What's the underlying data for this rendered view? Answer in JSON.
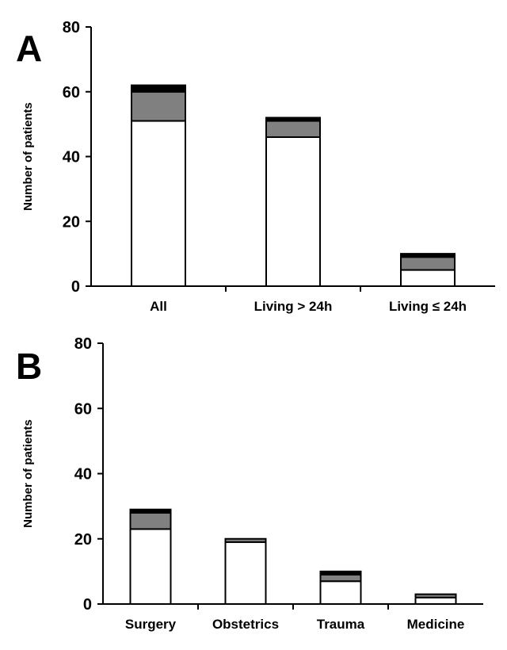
{
  "chart_data": [
    {
      "type": "bar",
      "stacked": true,
      "panel_label": "A",
      "ylabel": "Number of patients",
      "xlabel": "",
      "ylim": [
        0,
        80
      ],
      "yticks": [
        "0",
        "20",
        "40",
        "60",
        "80"
      ],
      "categories": [
        "All",
        "Living > 24h",
        "Living ≤ 24h"
      ],
      "series": [
        {
          "name": "white",
          "color": "#ffffff",
          "values": [
            51,
            46,
            5
          ]
        },
        {
          "name": "gray",
          "color": "#808080",
          "values": [
            9,
            5,
            4
          ]
        },
        {
          "name": "black",
          "color": "#000000",
          "values": [
            2,
            1,
            1
          ]
        }
      ]
    },
    {
      "type": "bar",
      "stacked": true,
      "panel_label": "B",
      "ylabel": "Number of patients",
      "xlabel": "",
      "ylim": [
        0,
        80
      ],
      "yticks": [
        "0",
        "20",
        "40",
        "60",
        "80"
      ],
      "categories": [
        "Surgery",
        "Obstetrics",
        "Trauma",
        "Medicine"
      ],
      "series": [
        {
          "name": "white",
          "color": "#ffffff",
          "values": [
            23,
            19,
            7,
            2
          ]
        },
        {
          "name": "gray",
          "color": "#808080",
          "values": [
            5,
            1,
            2,
            1
          ]
        },
        {
          "name": "black",
          "color": "#000000",
          "values": [
            1,
            0,
            1,
            0
          ]
        }
      ]
    }
  ]
}
